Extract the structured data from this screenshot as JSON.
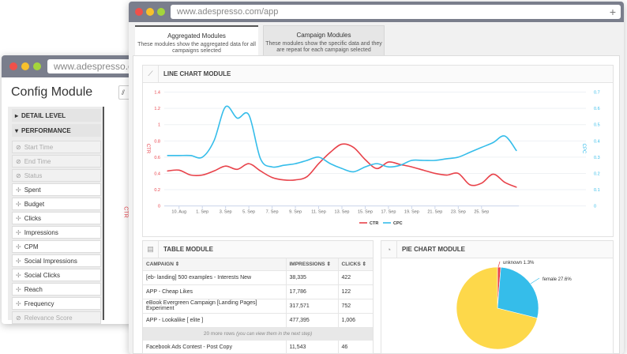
{
  "back_window": {
    "url": "www.adespresso.com",
    "title": "Config Module",
    "sections": [
      {
        "label": "DETAIL LEVEL",
        "expanded": false
      },
      {
        "label": "PERFORMANCE",
        "expanded": true
      }
    ],
    "items": [
      {
        "label": "Start Time",
        "disabled": true
      },
      {
        "label": "End Time",
        "disabled": true
      },
      {
        "label": "Status",
        "disabled": true
      },
      {
        "label": "Spent"
      },
      {
        "label": "Budget"
      },
      {
        "label": "Clicks"
      },
      {
        "label": "Impressions"
      },
      {
        "label": "CPM"
      },
      {
        "label": "Social Impressions"
      },
      {
        "label": "Social Clicks"
      },
      {
        "label": "Reach"
      },
      {
        "label": "Frequency"
      },
      {
        "label": "Relevance Score",
        "disabled": true
      }
    ],
    "partial_axis_label": "CTR"
  },
  "front_window": {
    "url": "www.adespresso.com/app",
    "tabs": [
      {
        "title": "Aggregated Modules",
        "desc": "These modules show the aggregated data for all campaigns selected",
        "active": true
      },
      {
        "title": "Campaign Modules",
        "desc": "These modules show the specific data and they are repeat for each campaign selected",
        "active": false
      }
    ]
  },
  "line_module": {
    "title": "LINE CHART MODULE"
  },
  "table_module": {
    "title": "TABLE MODULE",
    "columns": [
      "CAMPAIGN",
      "IMPRESSIONS",
      "CLICKS"
    ],
    "rows": [
      [
        "[eb- landing] 500 examples - Interests New",
        "38,335",
        "422"
      ],
      [
        "APP - Cheap Likes",
        "17,786",
        "122"
      ],
      [
        "eBook Evergreen Campaign [Landing Pages] Experiment",
        "317,571",
        "752"
      ],
      [
        "APP - Lookalike [ elite ]",
        "477,395",
        "1,006"
      ]
    ],
    "more_rows": "20 more rows",
    "more_hint": "(you can view them in the next step)",
    "last_row": [
      "Facebook Ads Contest - Post Copy",
      "11,543",
      "46"
    ]
  },
  "pie_module": {
    "title": "PIE CHART MODULE"
  },
  "colors": {
    "ctr": "#e8424a",
    "cpc": "#35bdea",
    "pie_yellow": "#fdd84a",
    "titlebar": "#7a7e8c"
  },
  "chart_data": [
    {
      "type": "line",
      "x_ticks": [
        "10. Aug",
        "1. Sep",
        "3. Sep",
        "5. Sep",
        "7. Sep",
        "9. Sep",
        "11. Sep",
        "13. Sep",
        "15. Sep",
        "17. Sep",
        "19. Sep",
        "21. Sep",
        "23. Sep",
        "25. Sep"
      ],
      "y_left": {
        "label": "CTR",
        "ticks": [
          "0",
          "0.2",
          "0.4",
          "0.6",
          "0.8",
          "1",
          "1.2",
          "1.4"
        ],
        "range": [
          0,
          1.4
        ]
      },
      "y_right": {
        "label": "CPC",
        "ticks": [
          "0",
          "0.1",
          "0.2",
          "0.3",
          "0.4",
          "0.5",
          "0.6",
          "0.7"
        ],
        "range": [
          0,
          0.7
        ]
      },
      "legend": "bottom",
      "grid": true,
      "series": [
        {
          "name": "CTR",
          "axis": "left",
          "values": [
            0.43,
            0.44,
            0.38,
            0.38,
            0.43,
            0.49,
            0.45,
            0.52,
            0.43,
            0.35,
            0.32,
            0.32,
            0.36,
            0.52,
            0.66,
            0.76,
            0.72,
            0.57,
            0.46,
            0.54,
            0.51,
            0.48,
            0.44,
            0.4,
            0.38,
            0.4,
            0.26,
            0.28,
            0.39,
            0.29,
            0.23
          ]
        },
        {
          "name": "CPC",
          "axis": "right",
          "values": [
            0.31,
            0.31,
            0.31,
            0.3,
            0.4,
            0.61,
            0.54,
            0.56,
            0.29,
            0.24,
            0.25,
            0.26,
            0.28,
            0.3,
            0.26,
            0.23,
            0.21,
            0.24,
            0.26,
            0.24,
            0.25,
            0.28,
            0.28,
            0.28,
            0.29,
            0.3,
            0.33,
            0.36,
            0.39,
            0.43,
            0.34
          ]
        }
      ]
    },
    {
      "type": "pie",
      "slices": [
        {
          "name": "unknown",
          "value": 1.3,
          "label": "unknown 1.3%"
        },
        {
          "name": "female",
          "value": 27.6,
          "label": "female 27.6%"
        },
        {
          "name": "",
          "value": 71.1
        }
      ]
    }
  ]
}
